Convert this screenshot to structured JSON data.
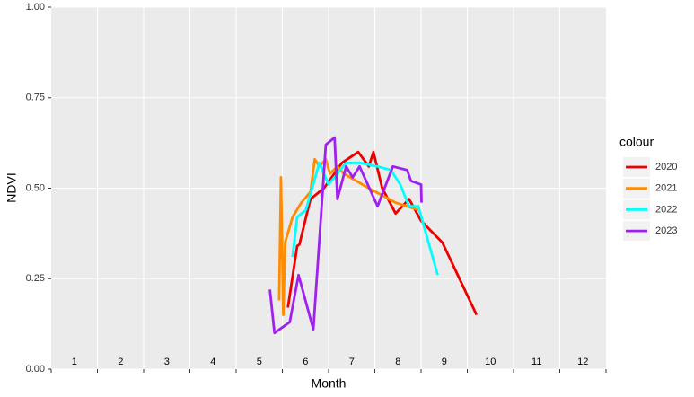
{
  "chart_data": {
    "type": "line",
    "x_label": "Month",
    "y_label": "NDVI",
    "legend_title": "colour",
    "legend_position": "right",
    "xlim": [
      0.5,
      12.5
    ],
    "xticks": [
      0.5,
      1.5,
      2.5,
      3.5,
      4.5,
      5.5,
      6.5,
      7.5,
      8.5,
      9.5,
      10.5,
      11.5,
      12.5
    ],
    "ylim": [
      0,
      1
    ],
    "yticks": [
      {
        "value": 0,
        "label": "0.00"
      },
      0.25,
      {
        "value": 0.5,
        "label": "0.50"
      },
      0.75,
      {
        "value": 1,
        "label": "1.00"
      }
    ],
    "grid": true,
    "annotations": [
      {
        "x": 1,
        "y": 0.02,
        "text": "1"
      },
      {
        "x": 2,
        "y": 0.02,
        "text": "2"
      },
      {
        "x": 3,
        "y": 0.02,
        "text": "3"
      },
      {
        "x": 4,
        "y": 0.02,
        "text": "4"
      },
      {
        "x": 5,
        "y": 0.02,
        "text": "5"
      },
      {
        "x": 6,
        "y": 0.02,
        "text": "6"
      },
      {
        "x": 7,
        "y": 0.02,
        "text": "7"
      },
      {
        "x": 8,
        "y": 0.02,
        "text": "8"
      },
      {
        "x": 9,
        "y": 0.02,
        "text": "9"
      },
      {
        "x": 10,
        "y": 0.02,
        "text": "10"
      },
      {
        "x": 11,
        "y": 0.02,
        "text": "11"
      },
      {
        "x": 12,
        "y": 0.02,
        "text": "12"
      }
    ],
    "series": [
      {
        "name": "2020",
        "color": "#ee0000",
        "x": [
          5.62,
          5.82,
          5.87,
          6.05,
          6.11,
          6.4,
          6.79,
          7.14,
          7.37,
          7.47,
          7.66,
          7.95,
          8.24,
          8.5,
          8.73,
          8.96,
          9.7
        ],
        "values": [
          0.17,
          0.34,
          0.345,
          0.44,
          0.47,
          0.5,
          0.57,
          0.6,
          0.56,
          0.6,
          0.5,
          0.43,
          0.47,
          0.41,
          0.38,
          0.35,
          0.15
        ]
      },
      {
        "name": "2021",
        "color": "#ff8c00",
        "x": [
          5.43,
          5.47,
          5.52,
          5.56,
          5.72,
          5.91,
          6.11,
          6.2,
          6.3,
          6.44,
          6.53,
          6.69,
          6.83,
          7.37,
          7.95,
          8.44
        ],
        "values": [
          0.19,
          0.53,
          0.15,
          0.35,
          0.42,
          0.46,
          0.49,
          0.58,
          0.56,
          0.58,
          0.54,
          0.56,
          0.54,
          0.5,
          0.46,
          0.44
        ]
      },
      {
        "name": "2022",
        "color": "#00ffff",
        "x": [
          5.72,
          5.82,
          6.01,
          6.3,
          6.5,
          6.69,
          6.88,
          7.17,
          7.56,
          7.85,
          8.05,
          8.24,
          8.44,
          8.86
        ],
        "values": [
          0.31,
          0.42,
          0.44,
          0.57,
          0.51,
          0.54,
          0.57,
          0.57,
          0.56,
          0.55,
          0.51,
          0.45,
          0.45,
          0.26
        ]
      },
      {
        "name": "2023",
        "color": "#a020f0",
        "x": [
          5.23,
          5.33,
          5.66,
          5.85,
          6.17,
          6.44,
          6.63,
          6.69,
          6.88,
          7.02,
          7.17,
          7.56,
          7.89,
          8.2,
          8.28,
          8.5,
          8.51
        ],
        "values": [
          0.22,
          0.1,
          0.13,
          0.26,
          0.11,
          0.62,
          0.64,
          0.47,
          0.56,
          0.53,
          0.56,
          0.45,
          0.56,
          0.55,
          0.52,
          0.51,
          0.46
        ]
      }
    ]
  }
}
